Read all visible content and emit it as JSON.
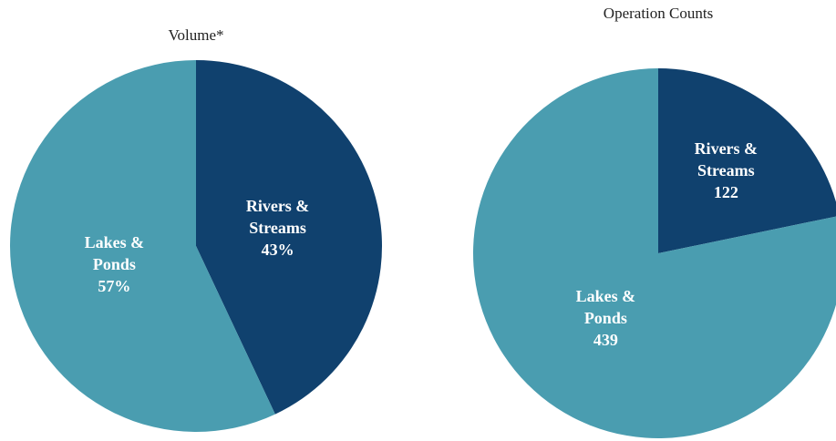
{
  "chart_data": [
    {
      "type": "pie",
      "title": "Volume*",
      "categories": [
        "Rivers & Streams",
        "Lakes & Ponds"
      ],
      "values": [
        43,
        57
      ],
      "value_labels": [
        "43%",
        "57%"
      ],
      "colors": [
        "#10416e",
        "#4a9db0"
      ]
    },
    {
      "type": "pie",
      "title": "Operation Counts",
      "categories": [
        "Rivers & Streams",
        "Lakes & Ponds"
      ],
      "values": [
        122,
        439
      ],
      "colors": [
        "#10416e",
        "#4a9db0"
      ]
    }
  ]
}
